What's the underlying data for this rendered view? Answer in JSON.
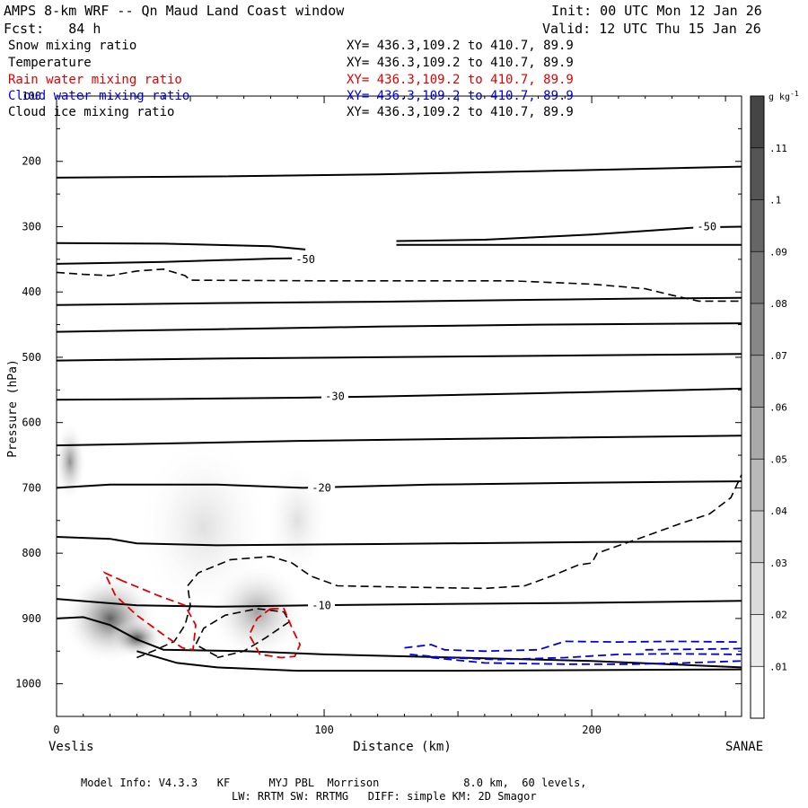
{
  "header": {
    "title": "AMPS 8-km WRF -- Qn Maud Land Coast window",
    "fcst": "Fcst:   84 h",
    "init": "Init: 00 UTC Mon 12 Jan 26",
    "valid": "Valid: 12 UTC Thu 15 Jan 26"
  },
  "fields": [
    {
      "name": "Snow mixing ratio",
      "xy": "XY= 436.3,109.2 to 410.7, 89.9",
      "color": "#000000"
    },
    {
      "name": "Temperature",
      "xy": "XY= 436.3,109.2 to 410.7, 89.9",
      "color": "#000000"
    },
    {
      "name": "Rain water mixing ratio",
      "xy": "XY= 436.3,109.2 to 410.7, 89.9",
      "color": "#e00000"
    },
    {
      "name": "Cloud water mixing ratio",
      "xy": "XY= 436.3,109.2 to 410.7, 89.9",
      "color": "#0000dd"
    },
    {
      "name": "Cloud ice mixing ratio",
      "xy": "XY= 436.3,109.2 to 410.7, 89.9",
      "color": "#000000"
    }
  ],
  "footer": {
    "line1": "Model Info: V4.3.3   KF      MYJ PBL  Morrison             8.0 km,  60 levels,",
    "line2": "LW: RRTM SW: RRTMG   DIFF: simple KM: 2D Smagor"
  },
  "chart_data": {
    "type": "contour",
    "xlabel": "Distance (km)",
    "ylabel": "Pressure (hPa)",
    "xlim": [
      0,
      256
    ],
    "ylim": [
      100,
      1050
    ],
    "x_ticks": [
      0,
      100,
      200
    ],
    "y_ticks": [
      200,
      300,
      400,
      500,
      600,
      700,
      800,
      900,
      1000
    ],
    "y_top_label": "100",
    "left_endpoint": "Veslis",
    "right_endpoint": "SANAE",
    "colorbar": {
      "unit": "g kg",
      "unit_exp": "-1",
      "levels": [
        0.01,
        0.02,
        0.03,
        0.04,
        0.05,
        0.06,
        0.07,
        0.08,
        0.09,
        0.1,
        0.11
      ],
      "labels": [
        ".01",
        ".02",
        ".03",
        ".04",
        ".05",
        ".06",
        ".07",
        ".08",
        ".09",
        ".1",
        ".11"
      ],
      "range": [
        0,
        0.12
      ]
    },
    "temperature_labels": [
      {
        "text": "-50",
        "x": 93,
        "p": 350
      },
      {
        "text": "-50",
        "x": 243,
        "p": 300
      },
      {
        "text": "-30",
        "x": 104,
        "p": 560
      },
      {
        "text": "-20",
        "x": 99,
        "p": 700
      },
      {
        "text": "-10",
        "x": 99,
        "p": 880
      }
    ],
    "temperature_lines": [
      [
        [
          0,
          225
        ],
        [
          60,
          223
        ],
        [
          120,
          220
        ],
        [
          180,
          215
        ],
        [
          256,
          208
        ]
      ],
      [
        [
          0,
          325
        ],
        [
          40,
          326
        ],
        [
          80,
          330
        ],
        [
          93,
          335
        ]
      ],
      [
        [
          127,
          322
        ],
        [
          160,
          320
        ],
        [
          200,
          312
        ],
        [
          240,
          301
        ],
        [
          256,
          300
        ]
      ],
      [
        [
          0,
          357
        ],
        [
          40,
          354
        ],
        [
          80,
          349
        ],
        [
          96,
          348
        ]
      ],
      [
        [
          127,
          328
        ],
        [
          180,
          328
        ],
        [
          256,
          328
        ]
      ],
      [
        [
          0,
          420
        ],
        [
          60,
          417
        ],
        [
          120,
          415
        ],
        [
          180,
          412
        ],
        [
          220,
          410
        ],
        [
          256,
          409
        ]
      ],
      [
        [
          0,
          461
        ],
        [
          60,
          457
        ],
        [
          120,
          453
        ],
        [
          180,
          450
        ],
        [
          256,
          448
        ]
      ],
      [
        [
          0,
          505
        ],
        [
          60,
          502
        ],
        [
          120,
          500
        ],
        [
          200,
          497
        ],
        [
          256,
          495
        ]
      ],
      [
        [
          0,
          565
        ],
        [
          40,
          564
        ],
        [
          90,
          562
        ],
        [
          120,
          560
        ],
        [
          180,
          555
        ],
        [
          256,
          548
        ]
      ],
      [
        [
          0,
          635
        ],
        [
          40,
          632
        ],
        [
          90,
          628
        ],
        [
          150,
          625
        ],
        [
          256,
          620
        ]
      ],
      [
        [
          0,
          700
        ],
        [
          20,
          695
        ],
        [
          60,
          695
        ],
        [
          92,
          700
        ],
        [
          140,
          695
        ],
        [
          200,
          692
        ],
        [
          256,
          690
        ]
      ],
      [
        [
          0,
          775
        ],
        [
          20,
          778
        ],
        [
          30,
          785
        ],
        [
          60,
          788
        ],
        [
          120,
          786
        ],
        [
          200,
          783
        ],
        [
          256,
          782
        ]
      ],
      [
        [
          0,
          870
        ],
        [
          30,
          880
        ],
        [
          60,
          882
        ],
        [
          95,
          880
        ],
        [
          140,
          878
        ],
        [
          200,
          876
        ],
        [
          256,
          873
        ]
      ],
      [
        [
          0,
          900
        ],
        [
          10,
          898
        ],
        [
          20,
          910
        ],
        [
          30,
          932
        ],
        [
          40,
          948
        ],
        [
          70,
          950
        ],
        [
          100,
          955
        ],
        [
          150,
          960
        ],
        [
          200,
          965
        ],
        [
          256,
          975
        ]
      ],
      [
        [
          30,
          950
        ],
        [
          45,
          968
        ],
        [
          60,
          975
        ],
        [
          90,
          980
        ],
        [
          150,
          980
        ],
        [
          200,
          979
        ],
        [
          256,
          978
        ]
      ]
    ],
    "snow_dashed": [
      [
        [
          0,
          370
        ],
        [
          10,
          373
        ],
        [
          20,
          375
        ],
        [
          30,
          368
        ],
        [
          40,
          365
        ],
        [
          48,
          375
        ],
        [
          50,
          382
        ],
        [
          100,
          383
        ],
        [
          170,
          383
        ],
        [
          200,
          388
        ],
        [
          220,
          395
        ],
        [
          230,
          405
        ],
        [
          240,
          414
        ],
        [
          256,
          414
        ]
      ],
      [
        [
          30,
          960
        ],
        [
          36,
          950
        ],
        [
          44,
          935
        ],
        [
          48,
          910
        ],
        [
          50,
          880
        ],
        [
          49,
          850
        ],
        [
          53,
          830
        ],
        [
          65,
          810
        ],
        [
          80,
          805
        ],
        [
          88,
          815
        ],
        [
          95,
          835
        ],
        [
          105,
          850
        ],
        [
          130,
          852
        ],
        [
          160,
          854
        ],
        [
          175,
          850
        ],
        [
          185,
          835
        ],
        [
          195,
          818
        ],
        [
          200,
          815
        ],
        [
          202,
          800
        ],
        [
          216,
          780
        ],
        [
          233,
          755
        ],
        [
          244,
          740
        ],
        [
          252,
          715
        ],
        [
          256,
          680
        ]
      ],
      [
        [
          60,
          958
        ],
        [
          52,
          940
        ],
        [
          55,
          915
        ],
        [
          63,
          895
        ],
        [
          75,
          885
        ],
        [
          85,
          890
        ],
        [
          87,
          905
        ],
        [
          78,
          930
        ],
        [
          70,
          950
        ],
        [
          60,
          960
        ]
      ]
    ],
    "rain_dashed": [
      [
        [
          25,
          843
        ],
        [
          18,
          830
        ],
        [
          22,
          865
        ],
        [
          30,
          895
        ],
        [
          40,
          925
        ],
        [
          47,
          945
        ],
        [
          51,
          948
        ],
        [
          52,
          910
        ],
        [
          48,
          880
        ],
        [
          38,
          865
        ],
        [
          25,
          843
        ]
      ],
      [
        [
          80,
          885
        ],
        [
          85,
          885
        ],
        [
          88,
          915
        ],
        [
          91,
          940
        ],
        [
          89,
          958
        ],
        [
          84,
          960
        ],
        [
          76,
          955
        ],
        [
          72,
          925
        ],
        [
          75,
          900
        ],
        [
          80,
          885
        ]
      ]
    ],
    "cloud_water_dashed": [
      [
        [
          130,
          945
        ],
        [
          140,
          940
        ],
        [
          145,
          948
        ],
        [
          160,
          950
        ],
        [
          180,
          948
        ],
        [
          190,
          935
        ],
        [
          210,
          936
        ],
        [
          230,
          935
        ],
        [
          256,
          936
        ]
      ],
      [
        [
          132,
          955
        ],
        [
          145,
          960
        ],
        [
          165,
          963
        ],
        [
          190,
          960
        ],
        [
          210,
          955
        ],
        [
          230,
          954
        ],
        [
          256,
          955
        ]
      ],
      [
        [
          140,
          960
        ],
        [
          160,
          968
        ],
        [
          190,
          970
        ],
        [
          215,
          970
        ],
        [
          235,
          968
        ],
        [
          256,
          965
        ]
      ],
      [
        [
          220,
          948
        ],
        [
          240,
          947
        ],
        [
          256,
          946
        ]
      ]
    ],
    "snow_blobs": [
      {
        "x": 5,
        "p": 660,
        "rx": 6,
        "rp": 60,
        "q": 0.07
      },
      {
        "x": 20,
        "p": 900,
        "rx": 18,
        "rp": 70,
        "q": 0.1
      },
      {
        "x": 30,
        "p": 930,
        "rx": 10,
        "rp": 30,
        "q": 0.11
      },
      {
        "x": 55,
        "p": 760,
        "rx": 25,
        "rp": 140,
        "q": 0.02
      },
      {
        "x": 75,
        "p": 890,
        "rx": 18,
        "rp": 75,
        "q": 0.06
      },
      {
        "x": 90,
        "p": 750,
        "rx": 12,
        "rp": 90,
        "q": 0.02
      }
    ]
  }
}
